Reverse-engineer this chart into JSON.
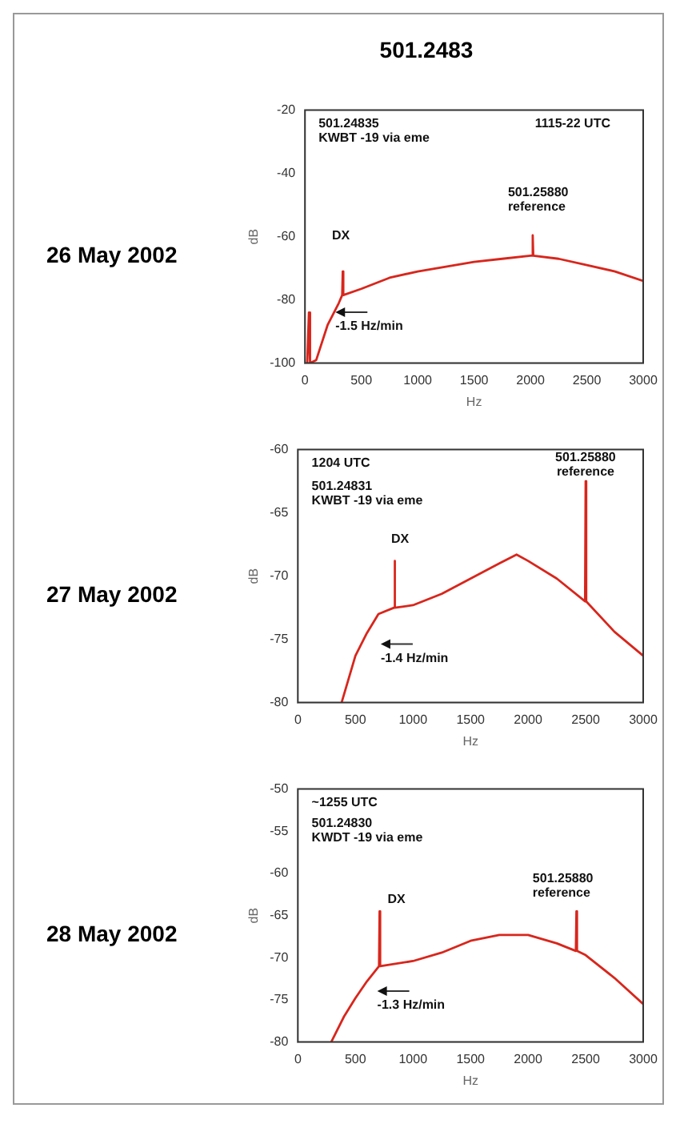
{
  "chart_data": [
    {
      "type": "line",
      "title": "501.2483",
      "subtitle": "26 May 2002",
      "xlabel": "Hz",
      "ylabel": "dB",
      "x": [
        20,
        35,
        45,
        100,
        200,
        300,
        330,
        335,
        340,
        500,
        750,
        1000,
        1250,
        1500,
        1750,
        2000,
        2015,
        2020,
        2025,
        2250,
        2500,
        2750,
        3000
      ],
      "series": [
        {
          "color": "#d8261c",
          "values": [
            -100,
            -84,
            -100,
            -99,
            -88,
            -81,
            -78.5,
            -71,
            -78.5,
            -76.5,
            -73,
            -71,
            -69.5,
            -68,
            -67,
            -66,
            -66,
            -59.6,
            -66,
            -67,
            -69,
            -71,
            -74
          ]
        }
      ],
      "xlim": [
        0,
        3000
      ],
      "xticks": [
        0,
        500,
        1000,
        1500,
        2000,
        2500,
        3000
      ],
      "ylim": [
        -100,
        -20
      ],
      "yticks": [
        -20,
        -40,
        -60,
        -80,
        -100
      ],
      "marker": "none",
      "line_style": "solid",
      "annotations": [
        "501.24835\nKWBT -19 via eme",
        "1115-22 UTC",
        "501.25880\nreference",
        "DX",
        "-1.5 Hz/min"
      ]
    },
    {
      "type": "line",
      "subtitle": "27 May 2002",
      "xlabel": "Hz",
      "ylabel": "dB",
      "x": [
        380,
        500,
        600,
        700,
        835,
        840,
        845,
        1000,
        1250,
        1500,
        1750,
        1900,
        2000,
        2250,
        2495,
        2500,
        2505,
        2750,
        3000
      ],
      "series": [
        {
          "color": "#d8261c",
          "values": [
            -80,
            -76.3,
            -74.5,
            -73,
            -72.5,
            -68.8,
            -72.5,
            -72.3,
            -71.4,
            -70.2,
            -69,
            -68.3,
            -68.8,
            -70.2,
            -72,
            -62.5,
            -72,
            -74.4,
            -76.3
          ]
        }
      ],
      "xlim": [
        0,
        3000
      ],
      "xticks": [
        0,
        500,
        1000,
        1500,
        2000,
        2500,
        3000
      ],
      "ylim": [
        -80,
        -60
      ],
      "yticks": [
        -60,
        -65,
        -70,
        -75,
        -80
      ],
      "marker": "none",
      "line_style": "solid",
      "annotations": [
        "1204 UTC",
        "501.24831\nKWBT -19 via eme",
        "501.25880\nreference",
        "DX",
        "-1.4 Hz/min"
      ]
    },
    {
      "type": "line",
      "subtitle": "28 May 2002",
      "xlabel": "Hz",
      "ylabel": "dB",
      "x": [
        290,
        400,
        500,
        600,
        705,
        710,
        715,
        1000,
        1250,
        1500,
        1750,
        2000,
        2250,
        2415,
        2420,
        2425,
        2500,
        2750,
        3000
      ],
      "series": [
        {
          "color": "#d8261c",
          "values": [
            -80,
            -77,
            -74.8,
            -72.8,
            -71,
            -64.5,
            -71,
            -70.4,
            -69.4,
            -68,
            -67.3,
            -67.3,
            -68.3,
            -69.2,
            -64.5,
            -69.2,
            -69.7,
            -72.4,
            -75.5
          ]
        }
      ],
      "xlim": [
        0,
        3000
      ],
      "xticks": [
        0,
        500,
        1000,
        1500,
        2000,
        2500,
        3000
      ],
      "ylim": [
        -80,
        -50
      ],
      "yticks": [
        -50,
        -55,
        -60,
        -65,
        -70,
        -75,
        -80
      ],
      "marker": "none",
      "line_style": "solid",
      "annotations": [
        "~1255 UTC",
        "501.24830\nKWDT -19 via eme",
        "501.25880\nreference",
        "DX",
        "-1.3 Hz/min"
      ]
    }
  ]
}
